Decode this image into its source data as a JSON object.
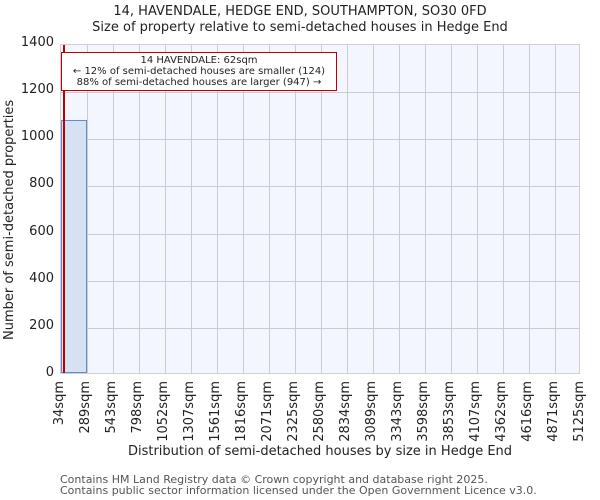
{
  "title_line1": "14, HAVENDALE, HEDGE END, SOUTHAMPTON, SO30 0FD",
  "title_line2": "Size of property relative to semi-detached houses in Hedge End",
  "annotation": {
    "line1": "14 HAVENDALE: 62sqm",
    "line2": "← 12% of semi-detached houses are smaller (124)",
    "line3": "88% of semi-detached houses are larger (947) →"
  },
  "footer": {
    "line1": "Contains HM Land Registry data © Crown copyright and database right 2025.",
    "line2": "Contains public sector information licensed under the Open Government Licence v3.0."
  },
  "colors": {
    "bar_fill": "#d6e1f4",
    "bar_edge": "#5b8bd0",
    "marker": "#c00000",
    "plot_bg": "#f3f6fe"
  },
  "chart_data": {
    "type": "bar",
    "title": "14, HAVENDALE, HEDGE END, SOUTHAMPTON, SO30 0FD — Size of property relative to semi-detached houses in Hedge End",
    "xlabel": "Distribution of semi-detached houses by size in Hedge End",
    "ylabel": "Number of semi-detached properties",
    "categories": [
      "34sqm",
      "289sqm",
      "543sqm",
      "798sqm",
      "1052sqm",
      "1307sqm",
      "1561sqm",
      "1816sqm",
      "2071sqm",
      "2325sqm",
      "2580sqm",
      "2834sqm",
      "3089sqm",
      "3343sqm",
      "3598sqm",
      "3853sqm",
      "4107sqm",
      "4362sqm",
      "4616sqm",
      "4871sqm",
      "5125sqm"
    ],
    "values": [
      1075,
      0,
      0,
      0,
      0,
      0,
      0,
      0,
      0,
      0,
      0,
      0,
      0,
      0,
      0,
      0,
      0,
      0,
      0,
      0
    ],
    "yticks": [
      0,
      200,
      400,
      600,
      800,
      1000,
      1200,
      1400
    ],
    "ylim": [
      0,
      1400
    ],
    "grid": true,
    "marker": {
      "x_value_sqm": 62,
      "label": "14 HAVENDALE: 62sqm"
    },
    "annotations": [
      "14 HAVENDALE: 62sqm",
      "← 12% of semi-detached houses are smaller (124)",
      "88% of semi-detached houses are larger (947) →"
    ]
  }
}
